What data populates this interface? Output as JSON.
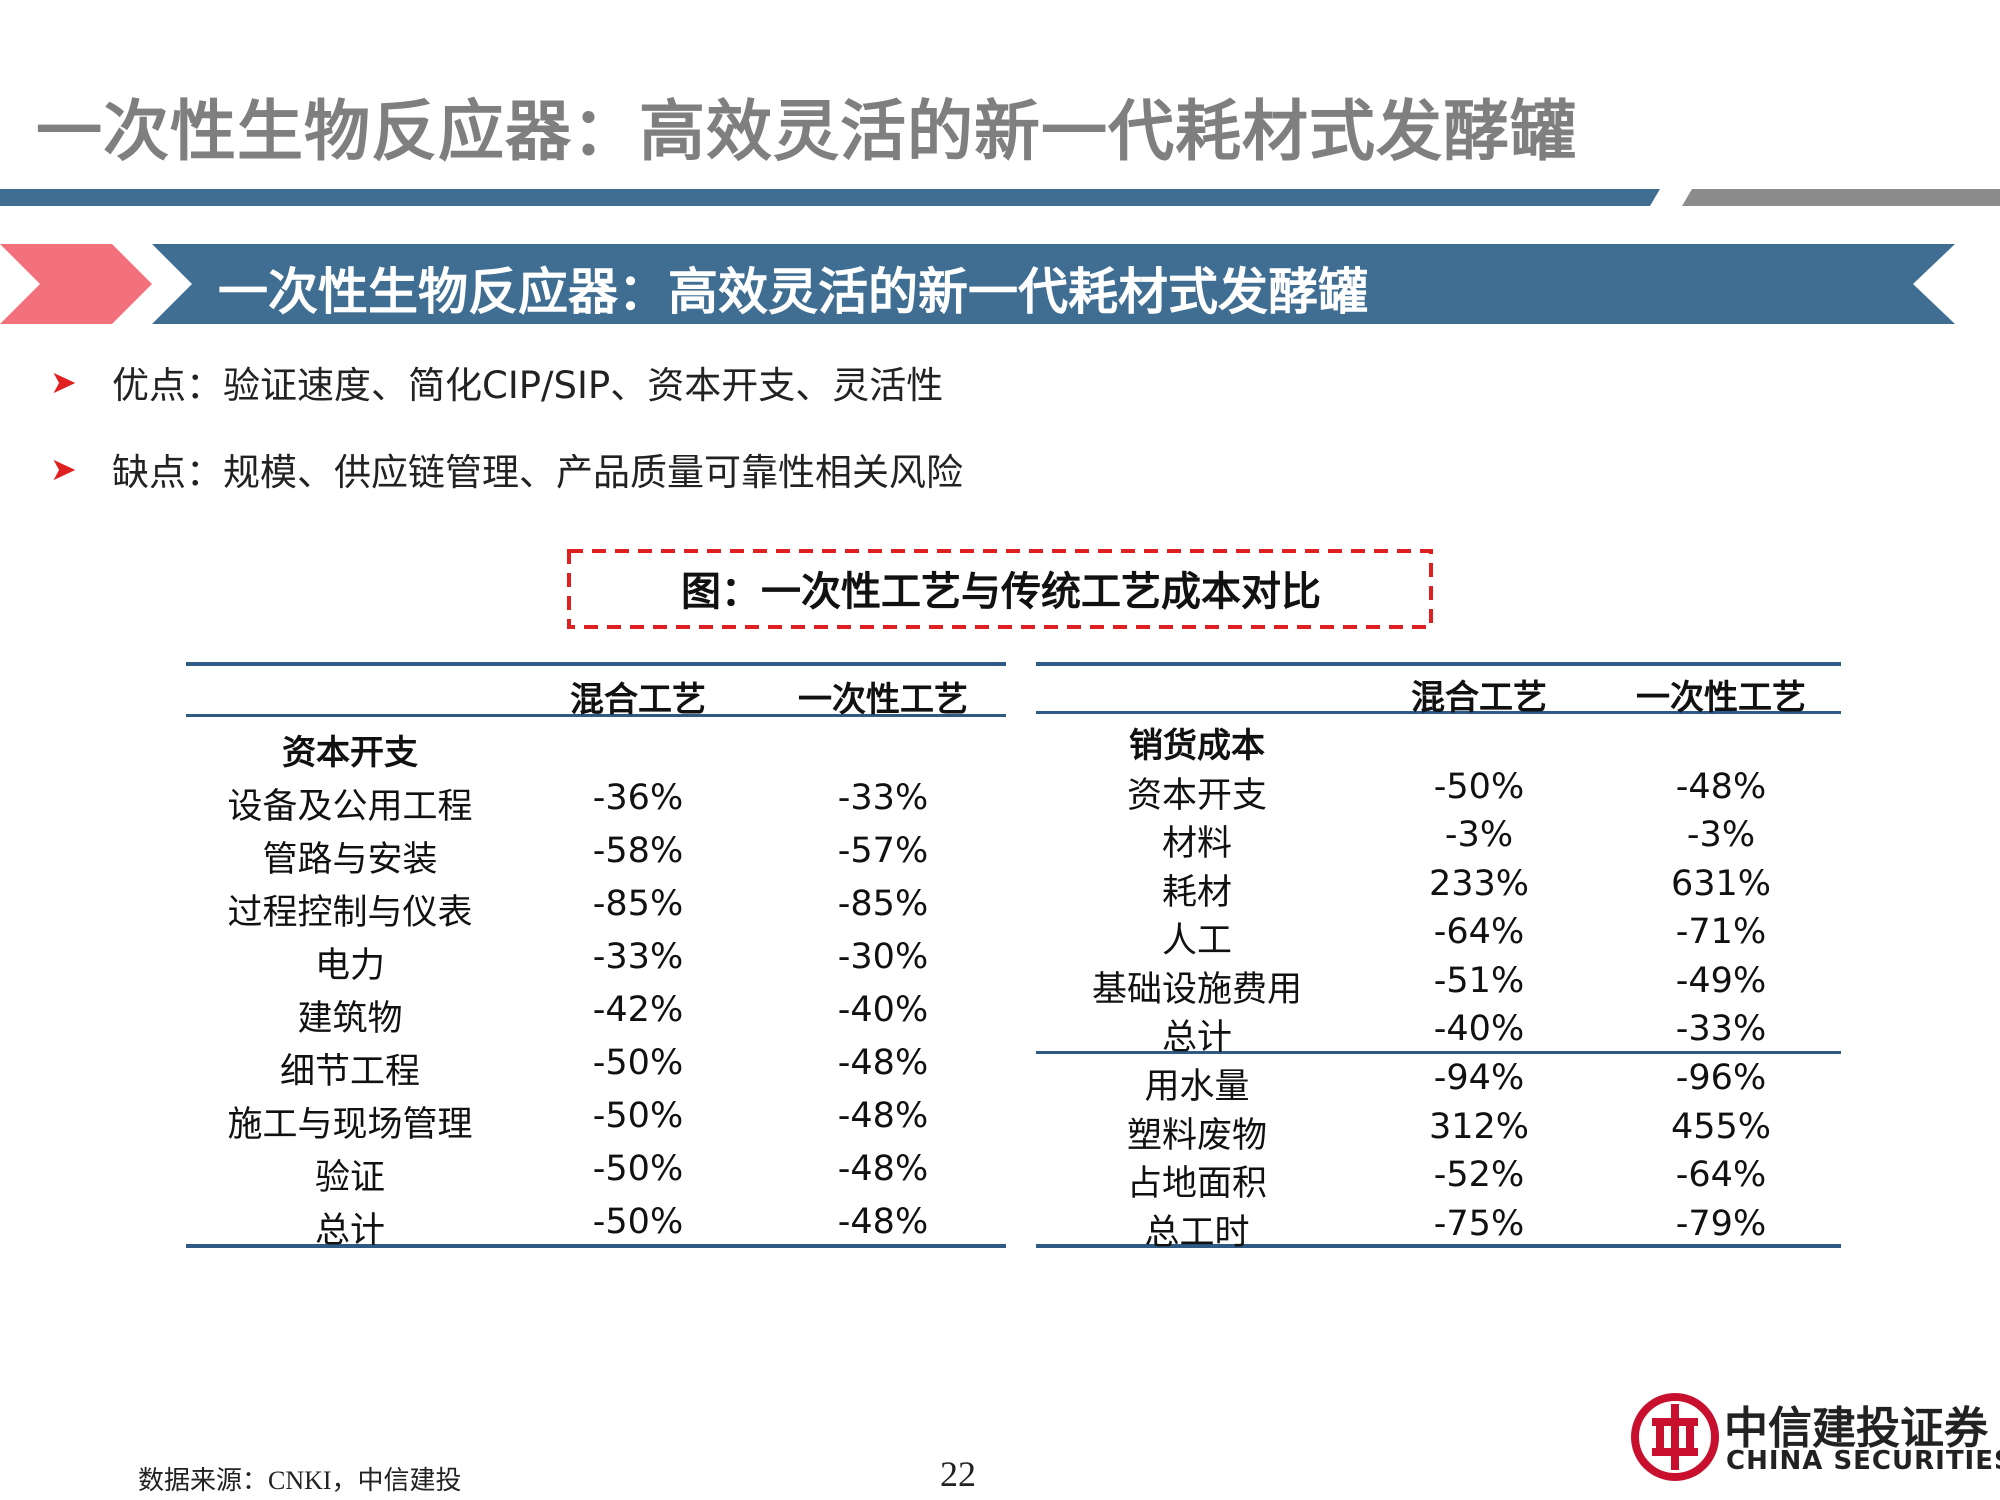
{
  "page": {
    "title": "一次性生物反应器：高效灵活的新一代耗材式发酵罐",
    "banner_title": "一次性生物反应器：高效灵活的新一代耗材式发酵罐",
    "bullets": [
      "优点：验证速度、简化CIP/SIP、资本开支、灵活性",
      "缺点：规模、供应链管理、产品质量可靠性相关风险"
    ],
    "figure_title": "图：一次性工艺与传统工艺成本对比",
    "source": "数据来源：CNKI，中信建投",
    "page_number": "22"
  },
  "left_table": {
    "columns": [
      "混合工艺",
      "一次性工艺"
    ],
    "section": "资本开支",
    "rows": [
      {
        "label": "设备及公用工程",
        "hybrid": "-36%",
        "single": "-33%"
      },
      {
        "label": "管路与安装",
        "hybrid": "-58%",
        "single": "-57%"
      },
      {
        "label": "过程控制与仪表",
        "hybrid": "-85%",
        "single": "-85%"
      },
      {
        "label": "电力",
        "hybrid": "-33%",
        "single": "-30%"
      },
      {
        "label": "建筑物",
        "hybrid": "-42%",
        "single": "-40%"
      },
      {
        "label": "细节工程",
        "hybrid": "-50%",
        "single": "-48%"
      },
      {
        "label": "施工与现场管理",
        "hybrid": "-50%",
        "single": "-48%"
      },
      {
        "label": "验证",
        "hybrid": "-50%",
        "single": "-48%"
      },
      {
        "label": "总计",
        "hybrid": "-50%",
        "single": "-48%"
      }
    ]
  },
  "right_table": {
    "columns": [
      "混合工艺",
      "一次性工艺"
    ],
    "section": "销货成本",
    "rows": [
      {
        "label": "资本开支",
        "hybrid": "-50%",
        "single": "-48%"
      },
      {
        "label": "材料",
        "hybrid": "-3%",
        "single": "-3%"
      },
      {
        "label": "耗材",
        "hybrid": "233%",
        "single": "631%"
      },
      {
        "label": "人工",
        "hybrid": "-64%",
        "single": "-71%"
      },
      {
        "label": "基础设施费用",
        "hybrid": "-51%",
        "single": "-49%"
      },
      {
        "label": "总计",
        "hybrid": "-40%",
        "single": "-33%"
      },
      {
        "label": "用水量",
        "hybrid": "-94%",
        "single": "-96%"
      },
      {
        "label": "塑料废物",
        "hybrid": "312%",
        "single": "455%"
      },
      {
        "label": "占地面积",
        "hybrid": "-52%",
        "single": "-64%"
      },
      {
        "label": "总工时",
        "hybrid": "-75%",
        "single": "-79%"
      }
    ]
  },
  "logo": {
    "name_cn": "中信建投证券",
    "name_en": "CHINA SECURITIES"
  },
  "colors": {
    "title_gray": "#7f7f7f",
    "banner_blue": "#3f6e92",
    "accent_red": "#f3717a",
    "dash_red": "#e02020",
    "logo_red": "#c8102e"
  }
}
